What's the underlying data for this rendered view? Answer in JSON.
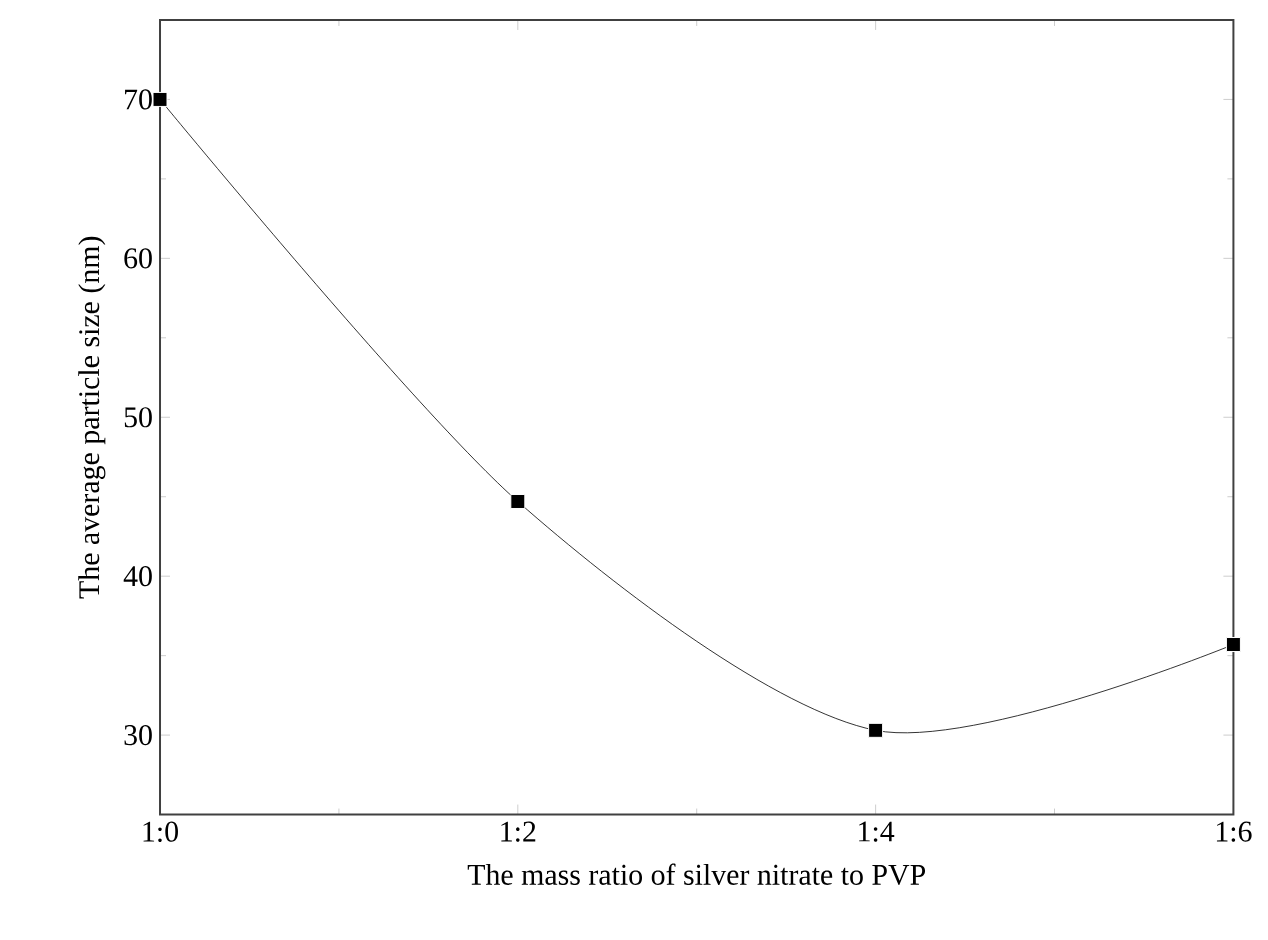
{
  "chart_data": {
    "type": "line",
    "xlabel": "The mass ratio of silver nitrate to PVP",
    "ylabel": "The average particle size (nm)",
    "categories": [
      "1:0",
      "1:2",
      "1:4",
      "1:6"
    ],
    "values": [
      70,
      44.7,
      30.3,
      35.7
    ],
    "color": "#000000",
    "marker": "square",
    "line_style": "solid",
    "ylim": [
      25,
      75
    ],
    "yticks": [
      30,
      40,
      50,
      60,
      70
    ]
  }
}
